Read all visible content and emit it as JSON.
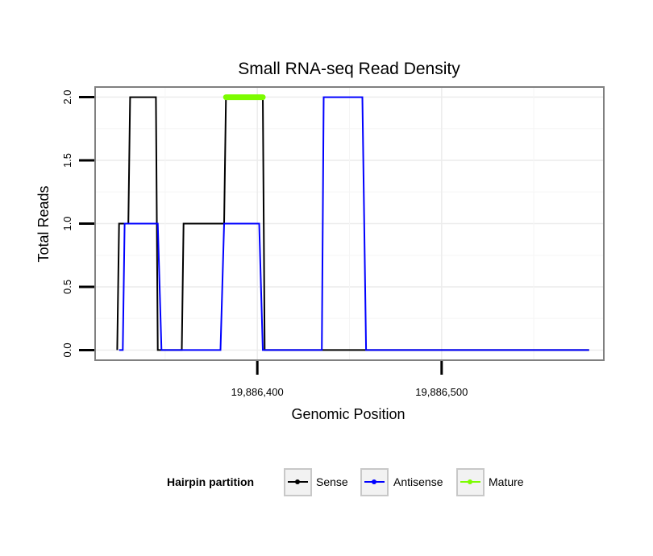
{
  "chart_data": {
    "type": "line",
    "title": "Small RNA-seq Read Density",
    "xlabel": "Genomic Position",
    "ylabel": "Total Reads",
    "xlim": [
      19886312,
      19886588
    ],
    "ylim": [
      -0.08,
      2.08
    ],
    "x_ticks": [
      {
        "value": 19886400,
        "label": "19,886,400"
      },
      {
        "value": 19886500,
        "label": "19,886,500"
      }
    ],
    "y_ticks": [
      {
        "value": 0.0,
        "label": "0.0"
      },
      {
        "value": 0.5,
        "label": "0.5"
      },
      {
        "value": 1.0,
        "label": "1.0"
      },
      {
        "value": 1.5,
        "label": "1.5"
      },
      {
        "value": 2.0,
        "label": "2.0"
      }
    ],
    "grid": true,
    "series": [
      {
        "name": "Sense",
        "color": "#000000",
        "points": [
          [
            19886324,
            0
          ],
          [
            19886325,
            1
          ],
          [
            19886330,
            1
          ],
          [
            19886331,
            2
          ],
          [
            19886345,
            2
          ],
          [
            19886346,
            0
          ],
          [
            19886359,
            0
          ],
          [
            19886360,
            1
          ],
          [
            19886382,
            1
          ],
          [
            19886383,
            2
          ],
          [
            19886403,
            2
          ],
          [
            19886404,
            0
          ],
          [
            19886580,
            0
          ]
        ]
      },
      {
        "name": "Antisense",
        "color": "#0000ff",
        "points": [
          [
            19886325,
            0
          ],
          [
            19886327,
            0
          ],
          [
            19886328,
            1
          ],
          [
            19886346,
            1
          ],
          [
            19886348,
            0
          ],
          [
            19886380,
            0
          ],
          [
            19886382,
            1
          ],
          [
            19886401,
            1
          ],
          [
            19886403,
            0
          ],
          [
            19886435,
            0
          ],
          [
            19886436,
            2
          ],
          [
            19886457,
            2
          ],
          [
            19886459,
            0
          ],
          [
            19886580,
            0
          ]
        ]
      },
      {
        "name": "Mature",
        "color": "#7cfc00",
        "points": [
          [
            19886383,
            2
          ],
          [
            19886403,
            2
          ]
        ]
      }
    ],
    "legend": {
      "title": "Hairpin partition",
      "position": "bottom",
      "entries": [
        {
          "label": "Sense",
          "color": "#000000"
        },
        {
          "label": "Antisense",
          "color": "#0000ff"
        },
        {
          "label": "Mature",
          "color": "#7cfc00"
        }
      ]
    }
  }
}
